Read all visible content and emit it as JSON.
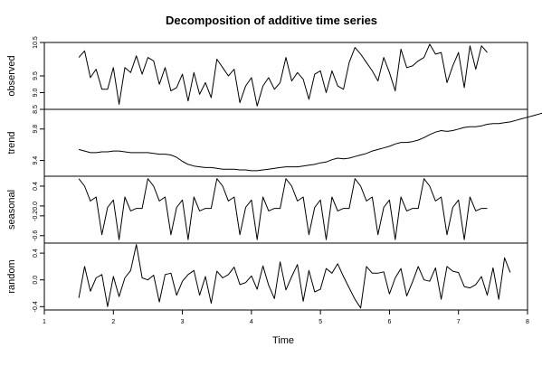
{
  "chart_data": {
    "type": "line",
    "title": "Decomposition of additive time series",
    "xlabel": "Time",
    "xlim": [
      1,
      8
    ],
    "x_ticks": [
      "1",
      "2",
      "3",
      "4",
      "5",
      "6",
      "7",
      "8"
    ],
    "x_start": 1.5,
    "x_step": 0.0833333,
    "panels": [
      {
        "name": "observed",
        "ylabel": "observed",
        "ylim": [
          8.5,
          10.5
        ],
        "y_ticks": [
          {
            "value": 8.5,
            "label": "8.5"
          },
          {
            "value": 9.0,
            "label": "9.0"
          },
          {
            "value": 9.5,
            "label": "9.5"
          },
          {
            "value": 10.5,
            "label": "10.5"
          }
        ],
        "values": [
          10.05,
          10.25,
          9.45,
          9.7,
          9.1,
          9.1,
          9.75,
          8.65,
          9.75,
          9.6,
          10.1,
          9.55,
          10.05,
          9.95,
          9.25,
          9.75,
          9.05,
          9.15,
          9.55,
          8.75,
          9.6,
          8.95,
          9.3,
          8.85,
          10.0,
          9.75,
          9.5,
          9.7,
          8.7,
          9.2,
          9.45,
          8.6,
          9.2,
          9.45,
          9.1,
          9.3,
          10.05,
          9.35,
          9.6,
          9.4,
          8.8,
          9.55,
          9.65,
          9.0,
          9.65,
          9.2,
          9.1,
          9.9,
          10.35,
          10.15,
          9.9,
          9.65,
          9.35,
          10.05,
          9.6,
          9.05,
          10.3,
          9.75,
          9.8,
          9.95,
          10.05,
          10.45,
          10.15,
          10.2,
          9.3,
          9.8,
          10.2,
          9.15,
          10.4,
          9.7,
          10.4,
          10.2
        ]
      },
      {
        "name": "trend",
        "ylabel": "trend",
        "ylim": [
          9.2,
          10.05
        ],
        "y_ticks": [
          {
            "value": 9.4,
            "label": "9.4"
          },
          {
            "value": 9.8,
            "label": "9.8"
          }
        ],
        "values": [
          9.54,
          9.52,
          9.5,
          9.5,
          9.51,
          9.51,
          9.52,
          9.52,
          9.51,
          9.5,
          9.5,
          9.5,
          9.5,
          9.49,
          9.48,
          9.48,
          9.47,
          9.44,
          9.39,
          9.35,
          9.33,
          9.32,
          9.31,
          9.31,
          9.3,
          9.29,
          9.29,
          9.29,
          9.28,
          9.28,
          9.27,
          9.27,
          9.28,
          9.29,
          9.3,
          9.31,
          9.32,
          9.32,
          9.32,
          9.33,
          9.34,
          9.35,
          9.37,
          9.38,
          9.41,
          9.43,
          9.42,
          9.43,
          9.45,
          9.47,
          9.49,
          9.52,
          9.54,
          9.56,
          9.58,
          9.61,
          9.63,
          9.63,
          9.64,
          9.66,
          9.69,
          9.73,
          9.76,
          9.78,
          9.77,
          9.78,
          9.8,
          9.82,
          9.83,
          9.83,
          9.84,
          9.86,
          9.87,
          9.87,
          9.88,
          9.89,
          9.91,
          9.93,
          9.95,
          9.97,
          9.99,
          10.01,
          10.04,
          10.04
        ]
      },
      {
        "name": "seasonal",
        "ylabel": "seasonal",
        "ylim": [
          -0.75,
          0.6
        ],
        "y_ticks": [
          {
            "value": -0.6,
            "label": "-0.6"
          },
          {
            "value": -0.2,
            "label": "-0.2"
          },
          {
            "value": 0.0,
            "label": "0.0"
          },
          {
            "value": 0.4,
            "label": "0.4"
          }
        ],
        "values": [
          0.55,
          0.4,
          0.1,
          0.18,
          -0.58,
          -0.03,
          0.12,
          -0.68,
          0.18,
          -0.1,
          -0.05,
          -0.05
        ]
      },
      {
        "name": "random",
        "ylabel": "random",
        "ylim": [
          -0.45,
          0.55
        ],
        "y_ticks": [
          {
            "value": -0.4,
            "label": "-0.4"
          },
          {
            "value": 0.0,
            "label": "0.0"
          },
          {
            "value": 0.4,
            "label": "0.4"
          }
        ],
        "values": [
          -0.27,
          0.2,
          -0.17,
          0.03,
          0.08,
          -0.4,
          0.05,
          -0.25,
          0.03,
          0.14,
          0.53,
          0.03,
          0.0,
          0.07,
          -0.33,
          0.08,
          0.1,
          -0.23,
          -0.02,
          0.08,
          0.14,
          -0.23,
          0.05,
          -0.35,
          0.13,
          0.03,
          0.08,
          0.19,
          -0.07,
          -0.04,
          0.06,
          -0.14,
          0.21,
          -0.08,
          -0.28,
          0.27,
          -0.15,
          0.05,
          0.23,
          -0.32,
          0.14,
          -0.18,
          -0.14,
          0.17,
          0.1,
          0.24,
          0.05,
          -0.12,
          -0.29,
          -0.42,
          0.2,
          0.1,
          0.1,
          0.12,
          -0.21,
          0.03,
          0.17,
          -0.24,
          -0.03,
          0.2,
          0.0,
          -0.02,
          0.18,
          -0.29,
          0.2,
          0.13,
          0.11,
          -0.1,
          -0.12,
          -0.07,
          0.05,
          -0.23,
          0.18,
          -0.29,
          0.33,
          0.11
        ]
      }
    ]
  }
}
